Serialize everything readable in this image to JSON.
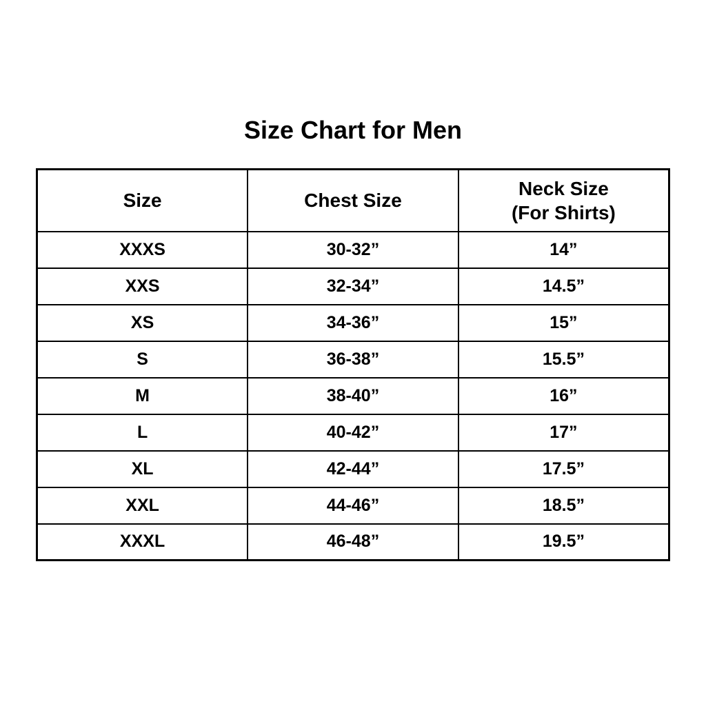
{
  "page": {
    "background_color": "#ffffff",
    "border_color": "#000000",
    "text_color": "#000000"
  },
  "chart_data": {
    "type": "table",
    "title": "Size Chart for Men",
    "columns": [
      "Size",
      "Chest Size",
      "Neck Size (For Shirts)"
    ],
    "header_lines": [
      [
        "Size"
      ],
      [
        "Chest Size"
      ],
      [
        "Neck Size",
        "(For Shirts)"
      ]
    ],
    "rows": [
      [
        "XXXS",
        "30-32”",
        "14”"
      ],
      [
        "XXS",
        "32-34”",
        "14.5”"
      ],
      [
        "XS",
        "34-36”",
        "15”"
      ],
      [
        "S",
        "36-38”",
        "15.5”"
      ],
      [
        "M",
        "38-40”",
        "16”"
      ],
      [
        "L",
        "40-42”",
        "17”"
      ],
      [
        "XL",
        "42-44”",
        "17.5”"
      ],
      [
        "XXL",
        "44-46”",
        "18.5”"
      ],
      [
        "XXXL",
        "46-48”",
        "19.5”"
      ]
    ]
  }
}
